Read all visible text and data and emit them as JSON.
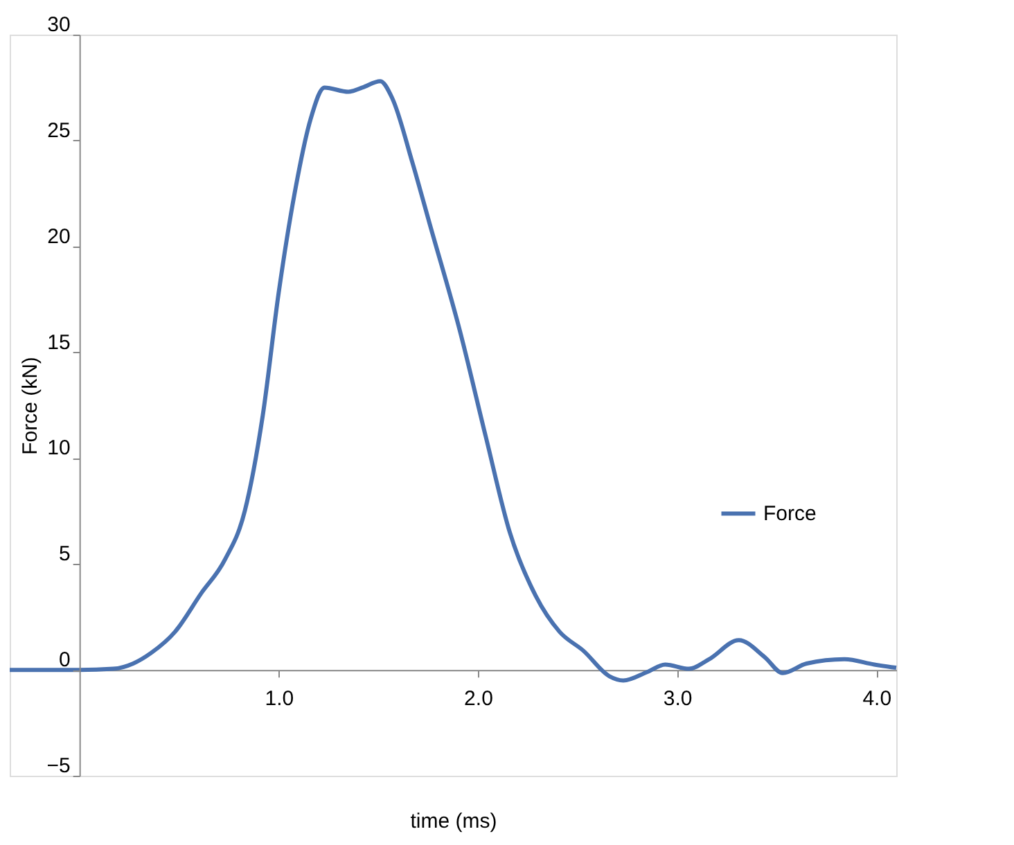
{
  "chart_data": {
    "type": "line",
    "xlabel": "time (ms)",
    "ylabel": "Force (kN)",
    "x": [
      -0.35,
      0,
      0.17,
      0.27,
      0.36,
      0.48,
      0.61,
      0.73,
      0.83,
      0.92,
      1.0,
      1.08,
      1.16,
      1.23,
      1.35,
      1.42,
      1.51,
      1.57,
      1.67,
      1.76,
      1.91,
      2.04,
      2.16,
      2.29,
      2.41,
      2.53,
      2.66,
      2.73,
      2.85,
      2.94,
      3.06,
      3.16,
      3.31,
      3.44,
      3.53,
      3.65,
      3.84,
      3.99,
      4.1
    ],
    "series": [
      {
        "name": "Force",
        "color": "#4a72b0",
        "values": [
          0,
          0,
          0.05,
          0.3,
          0.8,
          1.8,
          3.6,
          5.2,
          7.5,
          12,
          17.8,
          22.5,
          26,
          27.5,
          27.3,
          27.5,
          27.8,
          27,
          24,
          21,
          16,
          11,
          6.5,
          3.5,
          1.8,
          0.9,
          -0.3,
          -0.5,
          -0.1,
          0.25,
          0.05,
          0.5,
          1.4,
          0.6,
          -0.15,
          0.3,
          0.5,
          0.25,
          0.1
        ]
      }
    ],
    "xlim": [
      -0.35,
      4.1
    ],
    "ylim": [
      -5,
      30
    ],
    "xticks": [
      {
        "value": 1,
        "label": "1.0"
      },
      {
        "value": 2,
        "label": "2.0"
      },
      {
        "value": 3,
        "label": "3.0"
      },
      {
        "value": 4,
        "label": "4.0"
      }
    ],
    "yticks": [
      -5,
      0,
      5,
      10,
      15,
      20,
      25,
      30
    ],
    "grid": false,
    "legend": "right",
    "marker": "none",
    "line_style": "solid"
  }
}
